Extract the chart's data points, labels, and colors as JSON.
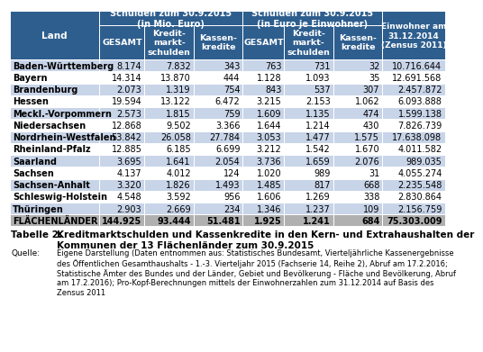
{
  "header_bg": "#2E5E8E",
  "header_text": "#FFFFFF",
  "land_header_bg": "#2E5E8E",
  "row_odd_bg": "#C8D4E8",
  "row_even_bg": "#FFFFFF",
  "total_row_bg": "#B0B0B0",
  "border_color": "#FFFFFF",
  "col_widths_raw": [
    115,
    58,
    63,
    63,
    53,
    63,
    63,
    80
  ],
  "group1_label": "Schulden zum 30.9.2015\n(in Mio. Euro)",
  "group2_label": "Schulden zum 30.9.2015\n(in Euro je Einwohner)",
  "land_label": "Land",
  "einw_label": "Einwohner am\n31.12.2014\n(Zensus 2011)",
  "sub_labels": [
    "GESAMT",
    "Kredit-\nmarkt-\nschulden",
    "Kassen-\nkredite",
    "GESAMT",
    "Kredit-\nmarkt-\nschulden",
    "Kassen-\nkredite"
  ],
  "rows": [
    [
      "Baden-Württemberg",
      "8.174",
      "7.832",
      "343",
      "763",
      "731",
      "32",
      "10.716.644"
    ],
    [
      "Bayern",
      "14.314",
      "13.870",
      "444",
      "1.128",
      "1.093",
      "35",
      "12.691.568"
    ],
    [
      "Brandenburg",
      "2.073",
      "1.319",
      "754",
      "843",
      "537",
      "307",
      "2.457.872"
    ],
    [
      "Hessen",
      "19.594",
      "13.122",
      "6.472",
      "3.215",
      "2.153",
      "1.062",
      "6.093.888"
    ],
    [
      "Meckl.-Vorpommern",
      "2.573",
      "1.815",
      "759",
      "1.609",
      "1.135",
      "474",
      "1.599.138"
    ],
    [
      "Niedersachsen",
      "12.868",
      "9.502",
      "3.366",
      "1.644",
      "1.214",
      "430",
      "7.826.739"
    ],
    [
      "Nordrhein-Westfalen",
      "53.842",
      "26.058",
      "27.784",
      "3.053",
      "1.477",
      "1.575",
      "17.638.098"
    ],
    [
      "Rheinland-Pfalz",
      "12.885",
      "6.185",
      "6.699",
      "3.212",
      "1.542",
      "1.670",
      "4.011.582"
    ],
    [
      "Saarland",
      "3.695",
      "1.641",
      "2.054",
      "3.736",
      "1.659",
      "2.076",
      "989.035"
    ],
    [
      "Sachsen",
      "4.137",
      "4.012",
      "124",
      "1.020",
      "989",
      "31",
      "4.055.274"
    ],
    [
      "Sachsen-Anhalt",
      "3.320",
      "1.826",
      "1.493",
      "1.485",
      "817",
      "668",
      "2.235.548"
    ],
    [
      "Schleswig-Holstein",
      "4.548",
      "3.592",
      "956",
      "1.606",
      "1.269",
      "338",
      "2.830.864"
    ],
    [
      "Thüringen",
      "2.903",
      "2.669",
      "234",
      "1.346",
      "1.237",
      "109",
      "2.156.759"
    ]
  ],
  "total_row": [
    "FLÄCHENLÄNDER",
    "144.925",
    "93.444",
    "51.481",
    "1.925",
    "1.241",
    "684",
    "75.303.009"
  ],
  "table_label": "Tabelle 2:",
  "table_title": "Kreditmarktschulden und Kassenkredite in den Kern- und Extrahaushalten der\nKommunen der 13 Flächenländer zum 30.9.2015",
  "source_label": "Quelle:",
  "source_text": "Eigene Darstellung (Daten entnommen aus: Statistisches Bundesamt, Vierteljährliche Kassenergebnisse\ndes Öffentlichen Gesamthaushalts - 1.-3. Vierteljahr 2015 (Fachserie 14, Reihe 2), Abruf am 17.2.2016;\nStatistische Ämter des Bundes und der Länder, Gebiet und Bevölkerung - Fläche und Bevölkerung, Abruf\nam 17.2.2016); Pro-Kopf-Berechnungen mittels der Einwohnerzahlen zum 31.12.2014 auf Basis des\nZensus 2011"
}
